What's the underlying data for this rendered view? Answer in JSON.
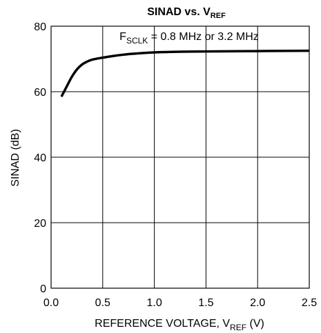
{
  "chart_data": {
    "type": "line",
    "title": {
      "main": "SINAD vs. V",
      "sub": "REF"
    },
    "xlabel": {
      "main": "REFERENCE VOLTAGE, V",
      "sub": "REF",
      "suffix": " (V)"
    },
    "ylabel": "SINAD (dB)",
    "annotation": {
      "main": "F",
      "sub": "SCLK",
      "suffix": " = 0.8 MHz or 3.2 MHz"
    },
    "xlim": [
      0,
      2.5
    ],
    "ylim": [
      0,
      80
    ],
    "x_ticks": [
      "0.0",
      "0.5",
      "1.0",
      "1.5",
      "2.0",
      "2.5"
    ],
    "y_ticks": [
      "0",
      "20",
      "40",
      "60",
      "80"
    ],
    "grid": true,
    "series": [
      {
        "color": "#000000",
        "x": [
          0.1,
          0.15,
          0.2,
          0.25,
          0.3,
          0.35,
          0.4,
          0.5,
          0.6,
          0.7,
          0.8,
          1.0,
          1.25,
          1.5,
          2.0,
          2.5
        ],
        "y": [
          58.5,
          61.5,
          64.5,
          66.8,
          68.3,
          69.2,
          69.8,
          70.4,
          70.9,
          71.3,
          71.6,
          72.0,
          72.2,
          72.3,
          72.4,
          72.5
        ]
      }
    ]
  }
}
